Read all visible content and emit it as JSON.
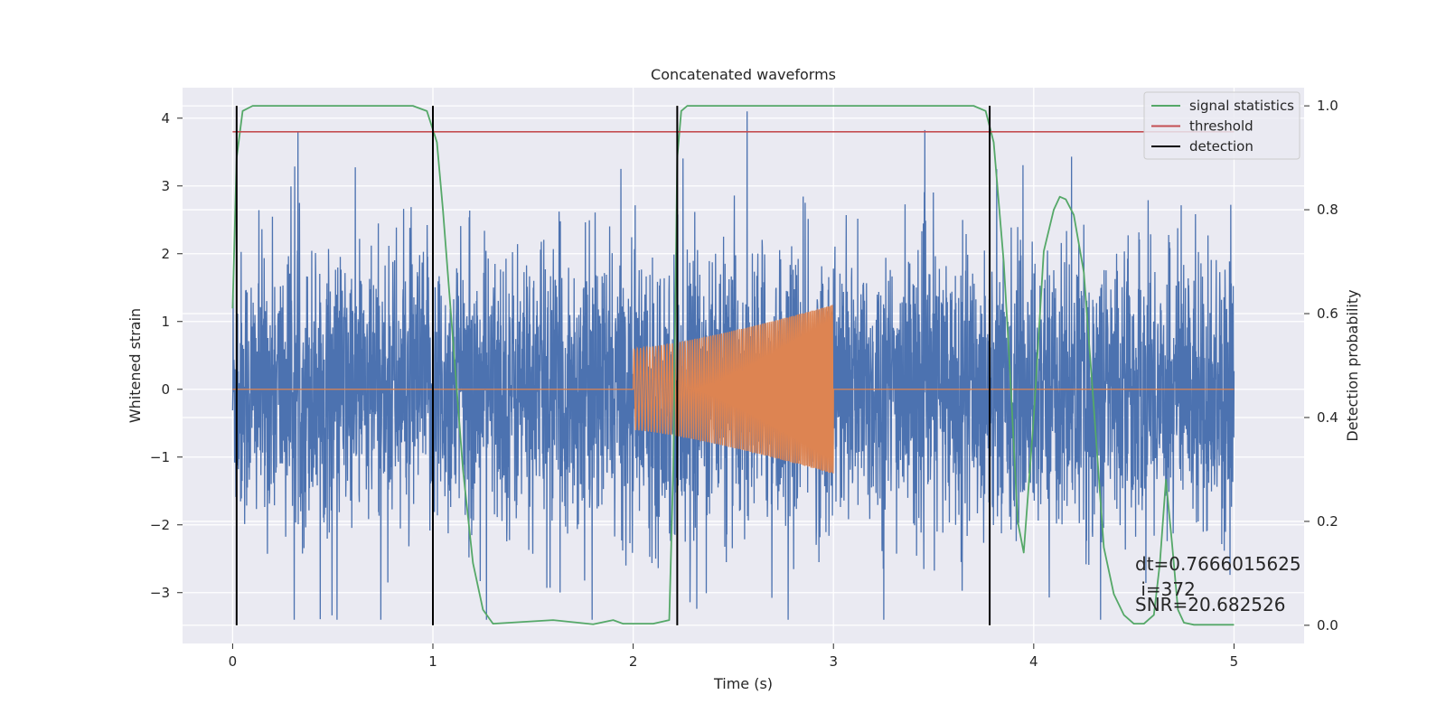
{
  "chart_data": {
    "type": "line",
    "title": "Concatenated waveforms",
    "xlabel": "Time (s)",
    "ylabel": "Whitened strain",
    "ylabel_right": "Detection probability",
    "xlim": [
      -0.25,
      5.35
    ],
    "ylim": [
      -3.75,
      4.45
    ],
    "ylim_right": [
      -0.035,
      1.035
    ],
    "xticks": [
      0,
      1,
      2,
      3,
      4,
      5
    ],
    "yticks": [
      -3,
      -2,
      -1,
      0,
      1,
      2,
      3,
      4
    ],
    "yticks_right": [
      0.0,
      0.2,
      0.4,
      0.6,
      0.8,
      1.0
    ],
    "grid": true,
    "legend_position": "top-right",
    "series": [
      {
        "name": "",
        "kind": "noise",
        "axis": "left",
        "color": "#4c72b0",
        "x_range": [
          0,
          5
        ],
        "amplitude_range": [
          -3.4,
          4.1
        ]
      },
      {
        "name": "",
        "kind": "chirp",
        "axis": "left",
        "color": "#dd8452",
        "x_range": [
          0,
          5
        ],
        "chirp_start": 2.0,
        "chirp_end": 3.0,
        "amplitude_at_start": 0.6,
        "amplitude_at_end": 1.25
      },
      {
        "name": "signal statistics",
        "axis": "right",
        "color": "#55a868",
        "x": [
          0,
          0.02,
          0.05,
          0.1,
          0.9,
          0.97,
          1.02,
          1.05,
          1.1,
          1.15,
          1.2,
          1.25,
          1.3,
          1.6,
          1.8,
          1.9,
          1.95,
          2.1,
          2.18,
          2.2,
          2.22,
          2.24,
          2.27,
          2.3,
          3.7,
          3.76,
          3.8,
          3.85,
          3.88,
          3.92,
          3.95,
          4.0,
          4.05,
          4.1,
          4.13,
          4.16,
          4.2,
          4.25,
          4.3,
          4.35,
          4.4,
          4.45,
          4.5,
          4.55,
          4.6,
          4.63,
          4.66,
          4.69,
          4.72,
          4.75,
          4.8,
          5.0
        ],
        "y": [
          0.61,
          0.9,
          0.99,
          1.0,
          1.0,
          0.99,
          0.93,
          0.8,
          0.55,
          0.3,
          0.12,
          0.03,
          0.003,
          0.01,
          0.002,
          0.01,
          0.003,
          0.003,
          0.01,
          0.3,
          0.9,
          0.99,
          1.0,
          1.0,
          1.0,
          0.99,
          0.93,
          0.7,
          0.5,
          0.2,
          0.14,
          0.4,
          0.72,
          0.8,
          0.825,
          0.82,
          0.79,
          0.68,
          0.42,
          0.15,
          0.06,
          0.02,
          0.003,
          0.003,
          0.02,
          0.12,
          0.28,
          0.16,
          0.03,
          0.005,
          0.001,
          0.001
        ]
      },
      {
        "name": "threshold",
        "axis": "right",
        "color": "#c44e52",
        "x": [
          0,
          5
        ],
        "y": [
          0.95,
          0.95
        ]
      },
      {
        "name": "detection",
        "axis": "right",
        "color": "#000000",
        "vlines": [
          0.02,
          1.0,
          2.22,
          3.78
        ]
      }
    ],
    "annotations": [
      "dt=0.7666015625",
      " i=372",
      "SNR=20.682526"
    ]
  }
}
